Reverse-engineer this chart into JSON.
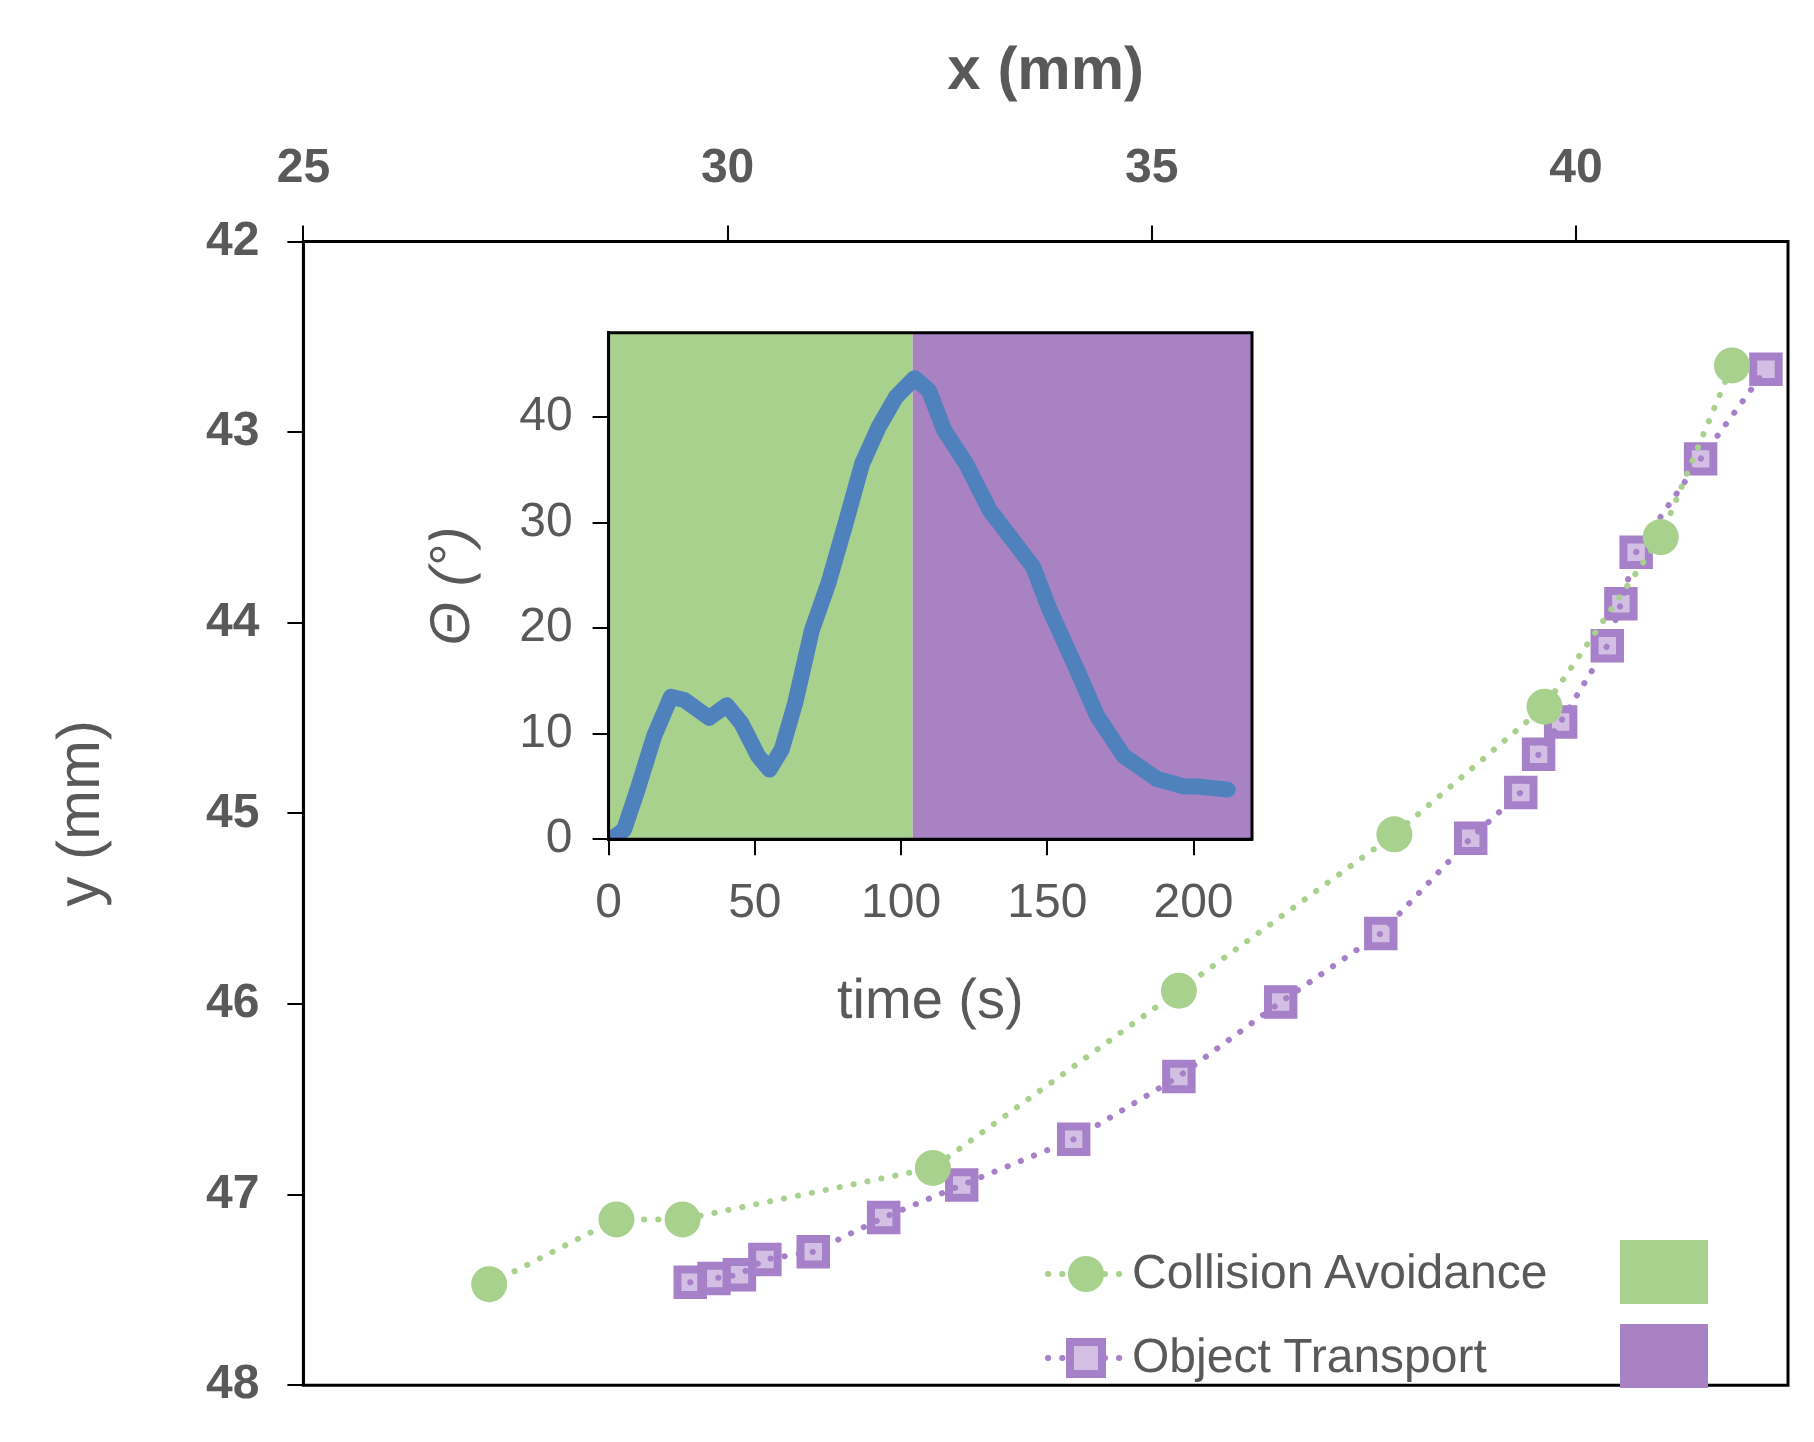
{
  "chart_data": [
    {
      "type": "line",
      "xlabel": "x (mm)",
      "ylabel": "y (mm)",
      "xlim": [
        25,
        42.5
      ],
      "xticks": [
        25,
        30,
        35,
        40
      ],
      "ylim": [
        48,
        42
      ],
      "yticks": [
        42,
        43,
        44,
        45,
        46,
        47,
        48
      ],
      "grid": false,
      "legend": "bottom right",
      "line_style": "dotted",
      "series": [
        {
          "name": "Collision Avoidance",
          "color": "#a9d18e",
          "marker": "circle",
          "x": [
            27.19,
            28.69,
            29.47,
            32.42,
            35.32,
            37.86,
            39.63,
            41.0,
            41.84
          ],
          "values": [
            47.47,
            47.13,
            47.13,
            46.86,
            45.93,
            45.11,
            44.44,
            43.55,
            42.65
          ]
        },
        {
          "name": "Object Transport",
          "color": "#a680c8",
          "marker": "square",
          "x": [
            29.56,
            29.84,
            30.14,
            30.44,
            31.01,
            31.84,
            32.76,
            34.08,
            35.32,
            36.52,
            37.7,
            38.76,
            39.35,
            39.56,
            39.82,
            40.37,
            40.53,
            40.71,
            41.47,
            42.24
          ],
          "values": [
            47.46,
            47.44,
            47.42,
            47.34,
            47.3,
            47.12,
            46.95,
            46.71,
            46.38,
            45.99,
            45.63,
            45.13,
            44.89,
            44.69,
            44.52,
            44.12,
            43.9,
            43.63,
            43.14,
            42.67
          ]
        }
      ]
    },
    {
      "type": "line",
      "xlabel": "time (s)",
      "ylabel": "Θ (°)",
      "xlim": [
        0,
        220
      ],
      "xticks": [
        0,
        50,
        100,
        150,
        200
      ],
      "ylim": [
        0,
        48
      ],
      "yticks": [
        0,
        10,
        20,
        30,
        40
      ],
      "grid": false,
      "marker": "none",
      "bands": [
        {
          "axis": "x",
          "from": 0,
          "to": 104,
          "color": "#a9d18e"
        },
        {
          "axis": "x",
          "from": 104,
          "to": 220,
          "color": "#a982c4"
        }
      ],
      "series": [
        {
          "color": "#4f81bd",
          "x": [
            1.4,
            5.3,
            9.9,
            15.6,
            21.3,
            25.9,
            34.4,
            40.4,
            45.4,
            51.1,
            55.0,
            59.2,
            63.8,
            69.5,
            75.2,
            81.0,
            86.7,
            92.4,
            98.2,
            104.6,
            109.6,
            114.7,
            122.2,
            130.3,
            137.2,
            145.2,
            150.9,
            160.1,
            167.0,
            176.1,
            187.6,
            196.8,
            201.4,
            211.7
          ],
          "values": [
            0.1,
            0.9,
            4.7,
            9.8,
            13.5,
            13.2,
            11.5,
            12.7,
            11.0,
            7.9,
            6.6,
            8.5,
            12.9,
            19.8,
            24.3,
            29.9,
            35.6,
            39.1,
            41.9,
            43.7,
            42.5,
            38.8,
            35.6,
            31.2,
            28.7,
            25.8,
            21.7,
            16.1,
            11.7,
            7.9,
            5.7,
            5.0,
            5.0,
            4.7
          ]
        }
      ]
    }
  ]
}
